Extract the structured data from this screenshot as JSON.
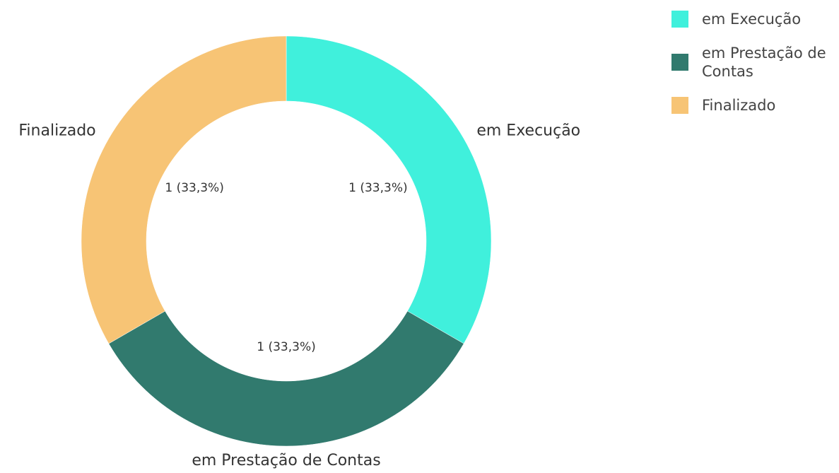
{
  "chart_data": {
    "type": "donut",
    "categories": [
      "em Execução",
      "em Prestação de Contas",
      "Finalizado"
    ],
    "values": [
      1,
      1,
      1
    ],
    "value_labels": [
      "1 (33,3%)",
      "1 (33,3%)",
      "1 (33,3%)"
    ],
    "colors": [
      "#40f0dc",
      "#317a6e",
      "#f7c475"
    ],
    "legend": "top-right"
  }
}
